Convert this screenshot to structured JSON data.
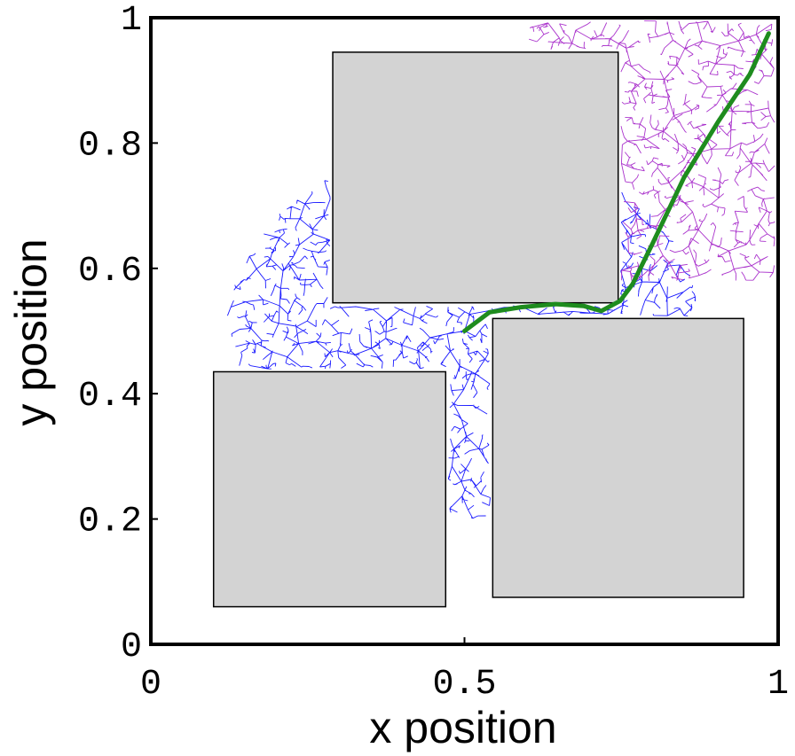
{
  "chart_data": {
    "type": "scatter",
    "title": "",
    "xlabel": "x position",
    "ylabel": "y position",
    "xlim": [
      0,
      1
    ],
    "ylim": [
      0,
      1
    ],
    "x_ticks": [
      "0",
      "0.5",
      "1"
    ],
    "y_ticks": [
      "0",
      "0.2",
      "0.4",
      "0.6",
      "0.8",
      "1"
    ],
    "x_tick_values": [
      0,
      0.5,
      1
    ],
    "y_tick_values": [
      0,
      0.2,
      0.4,
      0.6,
      0.8,
      1
    ],
    "grid": false,
    "legend": "none",
    "obstacles": [
      {
        "x0": 0.1,
        "y0": 0.06,
        "x1": 0.47,
        "y1": 0.435
      },
      {
        "x0": 0.29,
        "y0": 0.545,
        "x1": 0.745,
        "y1": 0.945
      },
      {
        "x0": 0.545,
        "y0": 0.075,
        "x1": 0.945,
        "y1": 0.52
      }
    ],
    "start": {
      "x": 0.5,
      "y": 0.5
    },
    "goal": {
      "x": 0.985,
      "y": 0.975
    },
    "path": {
      "color": "#1e8c1e",
      "points": [
        [
          0.5,
          0.5
        ],
        [
          0.54,
          0.53
        ],
        [
          0.59,
          0.538
        ],
        [
          0.645,
          0.543
        ],
        [
          0.69,
          0.54
        ],
        [
          0.718,
          0.532
        ],
        [
          0.748,
          0.548
        ],
        [
          0.768,
          0.575
        ],
        [
          0.8,
          0.64
        ],
        [
          0.85,
          0.745
        ],
        [
          0.905,
          0.835
        ],
        [
          0.955,
          0.91
        ],
        [
          0.985,
          0.975
        ]
      ]
    },
    "trees": [
      {
        "color": "#1a1aff",
        "root": [
          0.5,
          0.5
        ],
        "region": "start"
      },
      {
        "color": "#aa33cc",
        "root": [
          0.99,
          0.99
        ],
        "region": "goal"
      }
    ],
    "obstacle_color": "#d3d3d3"
  }
}
